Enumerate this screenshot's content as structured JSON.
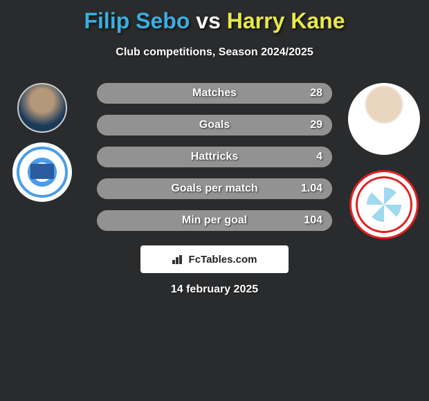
{
  "title": {
    "player1": "Filip Sebo",
    "player1_color": "#3aaee0",
    "vs": "vs",
    "vs_color": "#ffffff",
    "player2": "Harry Kane",
    "player2_color": "#e8e84a"
  },
  "subtitle": "Club competitions, Season 2024/2025",
  "stats": {
    "rows": [
      {
        "label": "Matches",
        "value": "28",
        "fill_pct": 100,
        "bg_color": "#929292",
        "fill_color": "#929292"
      },
      {
        "label": "Goals",
        "value": "29",
        "fill_pct": 100,
        "bg_color": "#929292",
        "fill_color": "#929292"
      },
      {
        "label": "Hattricks",
        "value": "4",
        "fill_pct": 100,
        "bg_color": "#929292",
        "fill_color": "#929292"
      },
      {
        "label": "Goals per match",
        "value": "1.04",
        "fill_pct": 100,
        "bg_color": "#929292",
        "fill_color": "#929292"
      },
      {
        "label": "Min per goal",
        "value": "104",
        "fill_pct": 100,
        "bg_color": "#929292",
        "fill_color": "#929292"
      }
    ]
  },
  "watermark": "FcTables.com",
  "date": "14 february 2025",
  "colors": {
    "background": "#2a2b2c",
    "text_shadow": "rgba(0,0,0,0.6)"
  }
}
